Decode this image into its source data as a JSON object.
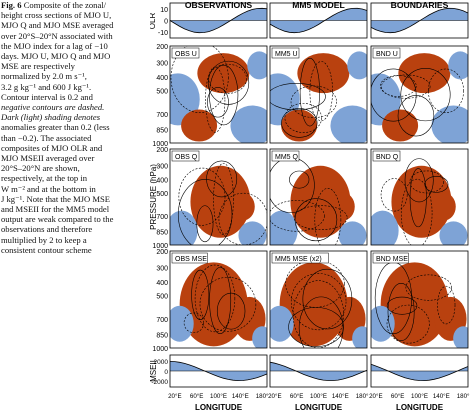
{
  "caption": {
    "label": "Fig. 6",
    "lines": [
      "Composite of the zonal/",
      "height cross sections of MJO U,",
      "MJO Q and MJO MSE averaged",
      "over 20°S–20°N associated with",
      "the MJO index for a lag of −10",
      "days. MJO U, MJO Q and MJO",
      "MSE are respectively",
      "normalized by 2.0 m s⁻¹,",
      "3.2 g kg⁻¹ and 600 J kg⁻¹.",
      "Contour interval is 0.2 and",
      "negative contours are dashed.",
      "Dark (light) shading denotes",
      "anomalies greater than 0.2 (less",
      "than −0.2). The associated",
      "composites of MJO OLR and",
      "MJO MSEII averaged over",
      "20°S–20°N are shown,",
      "respectively, at the top in",
      "W m⁻² and at the bottom in",
      "J kg⁻¹. Note that the MJO MSE",
      "and MSEII for the MM5 model",
      "output are weak compared to the",
      "observations and therefore",
      "multiplied by 2 to keep a",
      "consistent contour scheme"
    ]
  },
  "columns": [
    "OBSERVATIONS",
    "MM5 MODEL",
    "BOUNDARIES"
  ],
  "panel_labels": {
    "u": [
      "OBS U",
      "MM5 U",
      "BND U"
    ],
    "q": [
      "OBS Q",
      "MM5 Q",
      "BND Q"
    ],
    "mse": [
      "OBS MSE",
      "MM5 MSE (x2)",
      "BND MSE"
    ]
  },
  "row_labels": {
    "top": "OLR",
    "bottom": "MSEII",
    "pressure": "PRESSURE (hPa)"
  },
  "olr_ticks": [
    "10",
    "0",
    "-10"
  ],
  "pressure_ticks": [
    "200",
    "300",
    "400",
    "500",
    "700",
    "850",
    "1000"
  ],
  "mseii_ticks": [
    "2000",
    "0",
    "-2000"
  ],
  "x_ticks": [
    "20°E",
    "60°E",
    "100°E",
    "140°E",
    "180°"
  ],
  "x_label": "LONGITUDE",
  "colors": {
    "positive": "#b9410f",
    "negative": "#7ea3d6",
    "line": "#000000"
  }
}
